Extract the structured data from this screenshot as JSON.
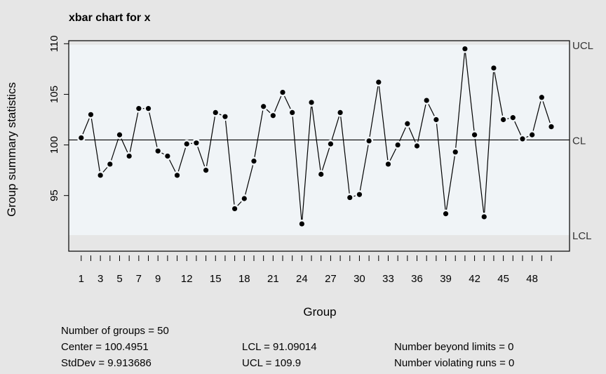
{
  "chart_data": {
    "type": "line",
    "title": "xbar chart for x",
    "xlabel": "Group",
    "ylabel": "Group summary statistics",
    "x": [
      1,
      2,
      3,
      4,
      5,
      6,
      7,
      8,
      9,
      10,
      11,
      12,
      13,
      14,
      15,
      16,
      17,
      18,
      19,
      20,
      21,
      22,
      23,
      24,
      25,
      26,
      27,
      28,
      29,
      30,
      31,
      32,
      33,
      34,
      35,
      36,
      37,
      38,
      39,
      40,
      41,
      42,
      43,
      44,
      45,
      46,
      47,
      48,
      49,
      50
    ],
    "values": [
      100.7,
      103.0,
      97.0,
      98.1,
      101.0,
      98.9,
      103.6,
      103.6,
      99.4,
      98.9,
      97.0,
      100.1,
      100.2,
      97.5,
      103.2,
      102.8,
      93.7,
      94.7,
      98.4,
      103.8,
      102.9,
      105.2,
      103.2,
      92.2,
      104.2,
      97.1,
      100.1,
      103.2,
      94.8,
      95.1,
      100.4,
      106.2,
      98.1,
      100.0,
      102.1,
      99.9,
      104.4,
      102.5,
      93.2,
      99.3,
      109.5,
      101.0,
      92.9,
      107.6,
      102.5,
      102.7,
      100.6,
      101.0,
      104.7,
      101.8
    ],
    "xticks": [
      1,
      3,
      5,
      7,
      9,
      12,
      15,
      18,
      21,
      24,
      27,
      30,
      33,
      36,
      39,
      42,
      45,
      48
    ],
    "xtick_labels": [
      "1",
      "3",
      "5",
      "7",
      "9",
      "12",
      "15",
      "18",
      "21",
      "24",
      "27",
      "30",
      "33",
      "36",
      "39",
      "42",
      "45",
      "48"
    ],
    "yticks": [
      95,
      100,
      105,
      110
    ],
    "ytick_labels": [
      "95",
      "100",
      "105",
      "110"
    ],
    "ylim": [
      89.5,
      110.3
    ],
    "xlim": [
      -0.3,
      51.9
    ],
    "center": 100.4951,
    "lcl": 91.09014,
    "ucl": 109.9,
    "limit_labels": {
      "ucl": "UCL",
      "cl": "CL",
      "lcl": "LCL"
    },
    "colors": {
      "plot_bg": "#f0f4f7",
      "outer_band": "#e6e6e6",
      "line": "#000000"
    }
  },
  "summary": {
    "groups": "Number of groups = 50",
    "center": "Center = 100.4951",
    "stddev": "StdDev = 9.913686",
    "lcl": "LCL = 91.09014",
    "ucl": "UCL = 109.9",
    "beyond": "Number beyond limits = 0",
    "violating": "Number violating runs = 0"
  }
}
